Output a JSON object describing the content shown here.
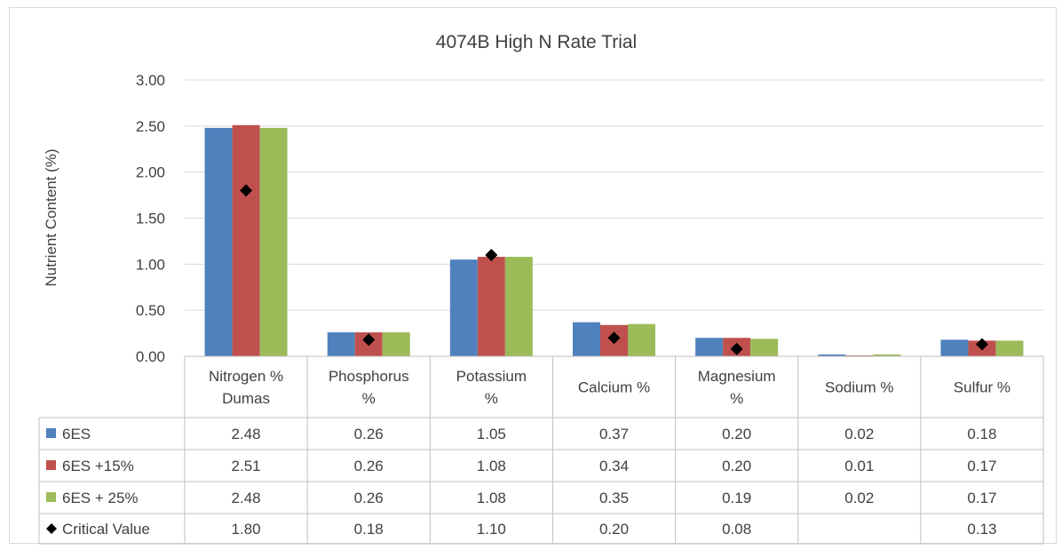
{
  "chart_data": {
    "type": "bar",
    "title": "4074B High N Rate Trial",
    "ylabel": "Nutrient Content (%)",
    "xlabel": "",
    "ylim": [
      0,
      3.0
    ],
    "yticks": [
      "0.00",
      "0.50",
      "1.00",
      "1.50",
      "2.00",
      "2.50",
      "3.00"
    ],
    "grid": true,
    "legend": "data-table",
    "categories": [
      [
        "Nitrogen %",
        "Dumas"
      ],
      [
        "Phosphorus",
        "%"
      ],
      [
        "Potassium",
        "%"
      ],
      [
        "Calcium %"
      ],
      [
        "Magnesium",
        "%"
      ],
      [
        "Sodium %"
      ],
      [
        "Sulfur %"
      ]
    ],
    "series": [
      {
        "name": "6ES",
        "type": "bar",
        "color": "#4f81bd",
        "values": [
          2.48,
          0.26,
          1.05,
          0.37,
          0.2,
          0.02,
          0.18
        ],
        "labels": [
          "2.48",
          "0.26",
          "1.05",
          "0.37",
          "0.20",
          "0.02",
          "0.18"
        ]
      },
      {
        "name": "6ES +15%",
        "type": "bar",
        "color": "#c0504d",
        "values": [
          2.51,
          0.26,
          1.08,
          0.34,
          0.2,
          0.01,
          0.17
        ],
        "labels": [
          "2.51",
          "0.26",
          "1.08",
          "0.34",
          "0.20",
          "0.01",
          "0.17"
        ]
      },
      {
        "name": "6ES + 25%",
        "type": "bar",
        "color": "#9bbb59",
        "values": [
          2.48,
          0.26,
          1.08,
          0.35,
          0.19,
          0.02,
          0.17
        ],
        "labels": [
          "2.48",
          "0.26",
          "1.08",
          "0.35",
          "0.19",
          "0.02",
          "0.17"
        ]
      },
      {
        "name": "Critical Value",
        "type": "marker",
        "color": "#000000",
        "values": [
          1.8,
          0.18,
          1.1,
          0.2,
          0.08,
          null,
          0.13
        ],
        "labels": [
          "1.80",
          "0.18",
          "1.10",
          "0.20",
          "0.08",
          "",
          "0.13"
        ]
      }
    ]
  }
}
